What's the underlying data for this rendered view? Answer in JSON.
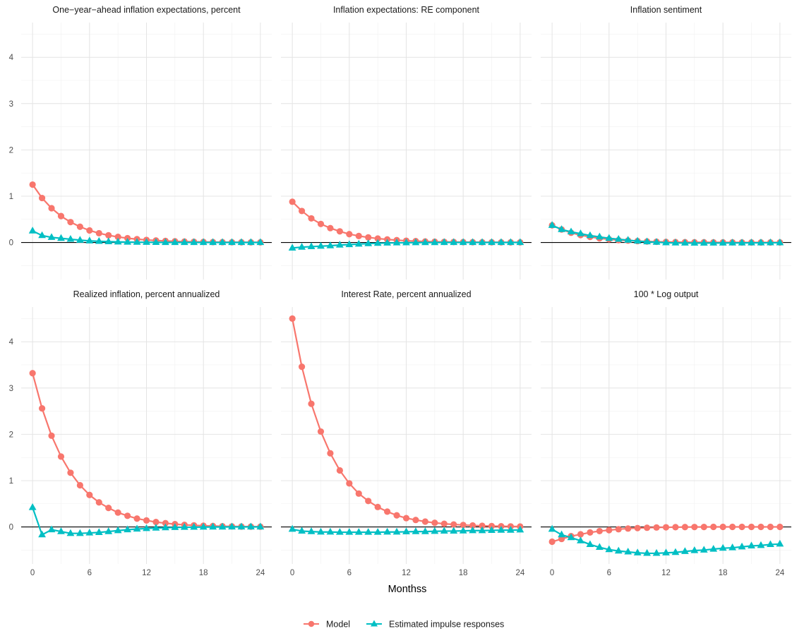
{
  "chart_data": {
    "type": "line",
    "xlabel": "Monthss",
    "ylabel": "",
    "x_ticks": [
      0,
      6,
      12,
      18,
      24
    ],
    "y_ticks": [
      0,
      1,
      2,
      3,
      4
    ],
    "xlim": [
      -1.2,
      25.2
    ],
    "ylim": [
      -0.8,
      4.75
    ],
    "grid": true,
    "legend": {
      "position": "bottom",
      "entries": [
        "Model",
        "Estimated impulse responses"
      ]
    },
    "colors": {
      "model": "#F8766D",
      "estimated": "#00BFC4",
      "zero_line": "#000000"
    },
    "series_names": {
      "model": "Model",
      "estimated": "Estimated impulse responses"
    },
    "x": [
      0,
      1,
      2,
      3,
      4,
      5,
      6,
      7,
      8,
      9,
      10,
      11,
      12,
      13,
      14,
      15,
      16,
      17,
      18,
      19,
      20,
      21,
      22,
      23,
      24
    ],
    "panels": [
      {
        "title": "One−year−ahead inflation expectations, percent",
        "model": [
          1.25,
          0.96,
          0.74,
          0.57,
          0.44,
          0.34,
          0.26,
          0.2,
          0.155,
          0.12,
          0.092,
          0.071,
          0.055,
          0.042,
          0.033,
          0.025,
          0.02,
          0.015,
          0.012,
          0.009,
          0.007,
          0.005,
          0.004,
          0.003,
          0.002
        ],
        "estimated": [
          0.25,
          0.15,
          0.11,
          0.09,
          0.07,
          0.05,
          0.035,
          0.025,
          0.018,
          0.012,
          0.008,
          0.005,
          0.003,
          0.002,
          0.001,
          0.0,
          0.0,
          0.0,
          0.0,
          0.0,
          0.0,
          0.0,
          0.0,
          0.0,
          0.0
        ]
      },
      {
        "title": "Inflation expectations: RE component",
        "model": [
          0.88,
          0.68,
          0.52,
          0.4,
          0.31,
          0.24,
          0.18,
          0.14,
          0.11,
          0.085,
          0.065,
          0.05,
          0.038,
          0.029,
          0.022,
          0.017,
          0.013,
          0.01,
          0.008,
          0.006,
          0.005,
          0.004,
          0.003,
          0.002,
          0.002
        ],
        "estimated": [
          -0.12,
          -0.1,
          -0.09,
          -0.08,
          -0.07,
          -0.055,
          -0.045,
          -0.035,
          -0.025,
          -0.018,
          -0.012,
          -0.008,
          -0.005,
          -0.003,
          -0.002,
          -0.001,
          0.0,
          0.0,
          0.0,
          0.0,
          0.0,
          0.0,
          0.0,
          0.0,
          0.0
        ]
      },
      {
        "title": "Inflation sentiment",
        "model": [
          0.37,
          0.28,
          0.21,
          0.16,
          0.12,
          0.09,
          0.07,
          0.05,
          0.04,
          0.03,
          0.022,
          0.016,
          0.012,
          0.009,
          0.007,
          0.005,
          0.004,
          0.003,
          0.002,
          0.002,
          0.001,
          0.001,
          0.001,
          0.0,
          0.0
        ],
        "estimated": [
          0.37,
          0.28,
          0.23,
          0.19,
          0.15,
          0.12,
          0.09,
          0.07,
          0.05,
          0.03,
          0.015,
          0.005,
          -0.005,
          -0.01,
          -0.012,
          -0.013,
          -0.013,
          -0.012,
          -0.011,
          -0.01,
          -0.009,
          -0.008,
          -0.007,
          -0.006,
          -0.005
        ]
      },
      {
        "title": "Realized inflation, percent annualized",
        "model": [
          3.32,
          2.56,
          1.97,
          1.52,
          1.17,
          0.9,
          0.69,
          0.53,
          0.41,
          0.31,
          0.24,
          0.18,
          0.14,
          0.105,
          0.08,
          0.06,
          0.045,
          0.034,
          0.026,
          0.02,
          0.015,
          0.011,
          0.008,
          0.006,
          0.005
        ],
        "estimated": [
          0.42,
          -0.17,
          -0.06,
          -0.1,
          -0.14,
          -0.14,
          -0.13,
          -0.12,
          -0.1,
          -0.08,
          -0.06,
          -0.045,
          -0.035,
          -0.025,
          -0.018,
          -0.012,
          -0.008,
          -0.005,
          -0.003,
          -0.002,
          -0.001,
          0.0,
          0.0,
          0.0,
          0.0
        ]
      },
      {
        "title": "Interest Rate, percent annualized",
        "model": [
          4.5,
          3.46,
          2.66,
          2.06,
          1.59,
          1.22,
          0.94,
          0.72,
          0.56,
          0.43,
          0.33,
          0.25,
          0.19,
          0.15,
          0.115,
          0.088,
          0.068,
          0.052,
          0.04,
          0.031,
          0.024,
          0.018,
          0.014,
          0.011,
          0.008
        ],
        "estimated": [
          -0.05,
          -0.09,
          -0.1,
          -0.11,
          -0.11,
          -0.115,
          -0.115,
          -0.115,
          -0.115,
          -0.115,
          -0.11,
          -0.11,
          -0.105,
          -0.1,
          -0.1,
          -0.095,
          -0.09,
          -0.09,
          -0.085,
          -0.08,
          -0.08,
          -0.075,
          -0.07,
          -0.07,
          -0.065
        ]
      },
      {
        "title": "100 * Log output",
        "model": [
          -0.32,
          -0.26,
          -0.2,
          -0.16,
          -0.12,
          -0.09,
          -0.07,
          -0.05,
          -0.035,
          -0.025,
          -0.018,
          -0.012,
          -0.008,
          -0.005,
          -0.003,
          -0.002,
          -0.001,
          0.0,
          0.0,
          0.0,
          0.0,
          0.0,
          0.0,
          0.0,
          0.0
        ],
        "estimated": [
          -0.05,
          -0.17,
          -0.23,
          -0.3,
          -0.38,
          -0.44,
          -0.49,
          -0.52,
          -0.54,
          -0.56,
          -0.57,
          -0.57,
          -0.56,
          -0.55,
          -0.53,
          -0.51,
          -0.5,
          -0.48,
          -0.46,
          -0.45,
          -0.43,
          -0.41,
          -0.4,
          -0.38,
          -0.37
        ]
      }
    ]
  }
}
